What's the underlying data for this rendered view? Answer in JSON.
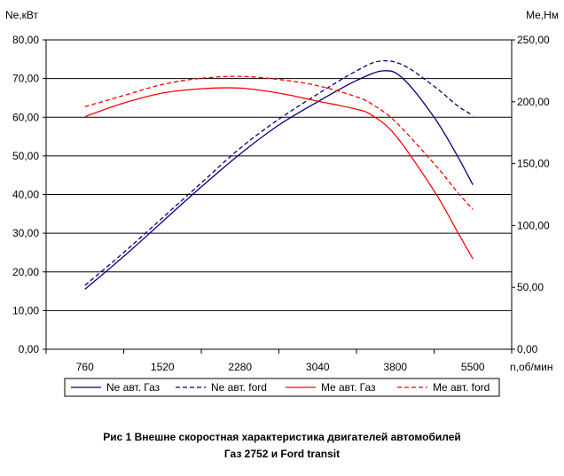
{
  "chart_data": {
    "type": "line",
    "y_left_label": "Ne,кВт",
    "y_right_label": "Me,Нм",
    "x_unit_label": "n,об/мин",
    "x_ticks": [
      "760",
      "1520",
      "2280",
      "3040",
      "3800",
      "5500"
    ],
    "y_left_ticks": [
      "0,00",
      "10,00",
      "20,00",
      "30,00",
      "40,00",
      "50,00",
      "60,00",
      "70,00",
      "80,00"
    ],
    "y_right_ticks": [
      "0,00",
      "50,00",
      "100,00",
      "150,00",
      "200,00",
      "250,00"
    ],
    "y_left_range": [
      0,
      80
    ],
    "y_right_range": [
      0,
      250
    ],
    "grid": "horizontal",
    "legend_position": "bottom",
    "series": [
      {
        "name": "Ne авт. Газ",
        "axis": "left",
        "color": "#000080",
        "dash": "solid",
        "points": [
          [
            0,
            15.5
          ],
          [
            0.5,
            24
          ],
          [
            1,
            33
          ],
          [
            1.5,
            42
          ],
          [
            2,
            50.5
          ],
          [
            2.5,
            58
          ],
          [
            3,
            64
          ],
          [
            3.5,
            69.5
          ],
          [
            3.85,
            72
          ],
          [
            4.1,
            70
          ],
          [
            4.5,
            60
          ],
          [
            4.8,
            50
          ],
          [
            5,
            42.5
          ]
        ]
      },
      {
        "name": "Ne авт. ford",
        "axis": "left",
        "color": "#000080",
        "dash": "dashed",
        "points": [
          [
            0,
            16.5
          ],
          [
            0.5,
            25
          ],
          [
            1,
            34
          ],
          [
            1.5,
            43
          ],
          [
            2,
            52
          ],
          [
            2.5,
            59.5
          ],
          [
            3,
            66
          ],
          [
            3.5,
            72
          ],
          [
            3.8,
            74.5
          ],
          [
            4.1,
            73.5
          ],
          [
            4.5,
            68
          ],
          [
            4.8,
            63
          ],
          [
            5,
            60.5
          ]
        ]
      },
      {
        "name": "Me авт. Газ",
        "axis": "right",
        "color": "#ff0000",
        "dash": "solid",
        "points": [
          [
            0,
            188
          ],
          [
            0.5,
            199
          ],
          [
            1,
            207
          ],
          [
            1.5,
            210.5
          ],
          [
            2,
            211
          ],
          [
            2.5,
            207
          ],
          [
            3,
            200.5
          ],
          [
            3.5,
            194
          ],
          [
            3.7,
            189
          ],
          [
            4,
            173
          ],
          [
            4.5,
            128
          ],
          [
            4.8,
            95
          ],
          [
            5,
            73
          ]
        ]
      },
      {
        "name": "Me авт. ford",
        "axis": "right",
        "color": "#ff0000",
        "dash": "dashed",
        "points": [
          [
            0,
            196
          ],
          [
            0.5,
            205
          ],
          [
            1,
            214
          ],
          [
            1.5,
            219
          ],
          [
            2,
            220.5
          ],
          [
            2.5,
            218
          ],
          [
            3,
            213
          ],
          [
            3.5,
            204
          ],
          [
            3.7,
            198
          ],
          [
            4,
            184
          ],
          [
            4.5,
            150
          ],
          [
            4.8,
            127
          ],
          [
            5,
            113
          ]
        ]
      }
    ]
  },
  "caption": {
    "line1": "Рис 1 Внешне скоростная характеристика двигателей автомобилей",
    "line2": "Газ 2752 и Ford transit"
  }
}
